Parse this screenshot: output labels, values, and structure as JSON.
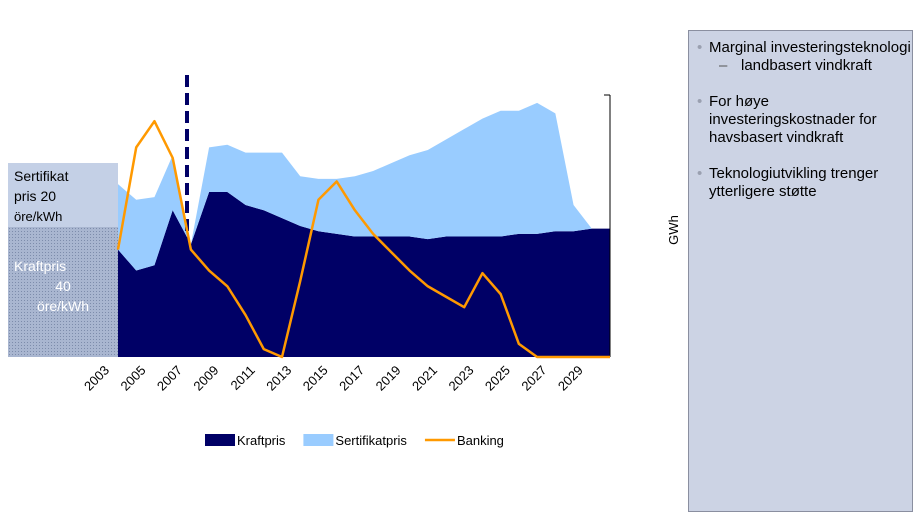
{
  "chart_data": {
    "type": "area",
    "y_axis_label": "GWh",
    "categories": [
      "2003",
      null,
      "2005",
      null,
      "2007",
      null,
      "2009",
      null,
      "2011",
      null,
      "2013",
      null,
      "2015",
      null,
      "2017",
      null,
      "2019",
      null,
      "2021",
      null,
      "2023",
      null,
      "2025",
      null,
      "2027",
      null,
      "2029",
      null
    ],
    "ylim": [
      0,
      100
    ],
    "series": [
      {
        "name": "Kraftpris",
        "color": "#000066",
        "type": "area",
        "values": [
          41,
          33,
          35,
          56,
          43,
          63,
          63,
          58,
          56,
          53,
          50,
          48,
          47,
          46,
          46,
          46,
          46,
          45,
          46,
          46,
          46,
          46,
          47,
          47,
          48,
          48,
          49,
          49
        ]
      },
      {
        "name": "Sertifikatpris",
        "color": "#99ccff",
        "type": "area",
        "values": [
          25,
          27,
          26,
          21,
          0,
          17,
          18,
          20,
          22,
          25,
          19,
          20,
          21,
          23,
          25,
          28,
          31,
          34,
          37,
          41,
          45,
          48,
          47,
          50,
          45,
          10,
          0,
          0
        ]
      },
      {
        "name": "Banking",
        "color": "#ff9900",
        "type": "line",
        "values": [
          41,
          80,
          90,
          76,
          41,
          33,
          27,
          16,
          3,
          0,
          29,
          60,
          67,
          56,
          47,
          40,
          33,
          27,
          23,
          19,
          32,
          24,
          5,
          0,
          0,
          0,
          0,
          0
        ]
      }
    ],
    "annotations": [
      {
        "lines": [
          "Sertifikat",
          "pris 20",
          "öre/kWh"
        ]
      },
      {
        "lines": [
          "Kraftpris",
          "40",
          "öre/kWh"
        ]
      }
    ]
  },
  "panel": {
    "items": [
      {
        "text": "Marginal investeringsteknologi",
        "sub": [
          "landbasert vindkraft"
        ]
      },
      {
        "text": "For høye investeringskostnader for havsbasert vindkraft",
        "sub": []
      },
      {
        "text": "Teknologiutvikling trenger ytterligere støtte",
        "sub": []
      }
    ]
  }
}
